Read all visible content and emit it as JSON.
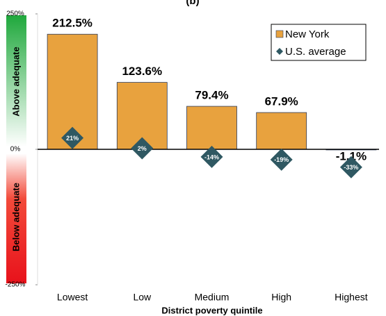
{
  "chart_data": {
    "type": "bar",
    "title": "(b)",
    "categories": [
      "Lowest",
      "Low",
      "Medium",
      "High",
      "Highest"
    ],
    "series": [
      {
        "name": "New York",
        "color": "#E8A23E",
        "values": [
          212.5,
          123.6,
          79.4,
          67.9,
          -1.1
        ],
        "value_labels": [
          "212.5%",
          "123.6%",
          "79.4%",
          "67.9%",
          "-1.1%"
        ]
      },
      {
        "name": "U.S. average",
        "color": "#2F5862",
        "marker": "diamond",
        "values": [
          21,
          2,
          -14,
          -19,
          -33
        ],
        "value_labels": [
          "21%",
          "2%",
          "-14%",
          "-19%",
          "-33%"
        ]
      }
    ],
    "ylim": [
      -250,
      250
    ],
    "yticks": [
      {
        "value": -250,
        "label": "-250%"
      },
      {
        "value": 0,
        "label": "0%"
      },
      {
        "value": 250,
        "label": "250%"
      }
    ],
    "xlabel": "District poverty quintile",
    "annotations": [
      "Above adequate",
      "Below adequate"
    ],
    "legend": "upper right",
    "grid": false
  }
}
